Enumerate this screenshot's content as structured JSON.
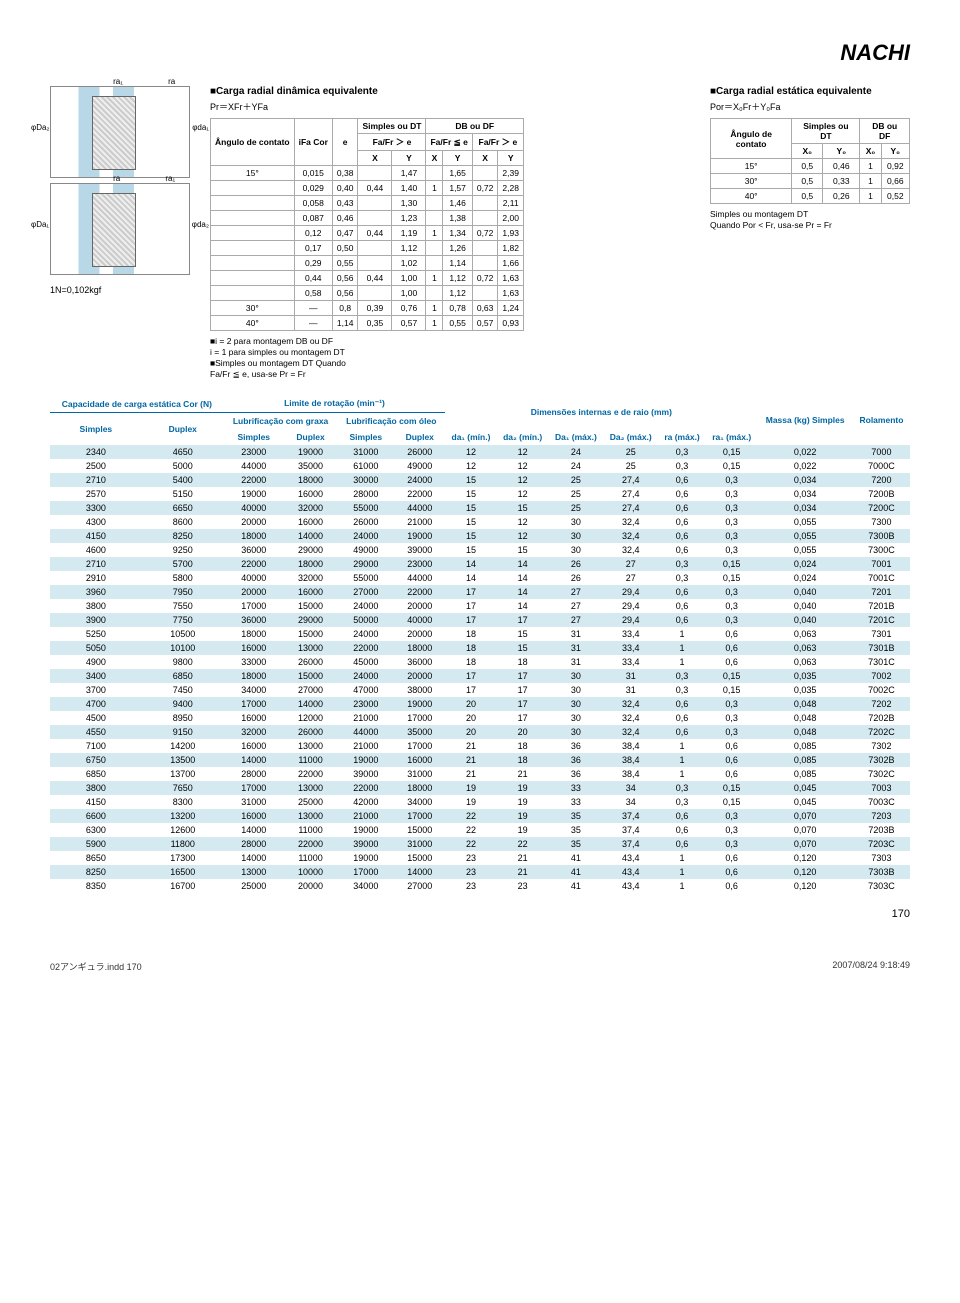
{
  "logo": "NACHI",
  "diagram": {
    "labels": [
      "φDa₂",
      "φda₁",
      "ra₁",
      "ra",
      "φDa₁",
      "φda₂"
    ],
    "note": "1N=0,102kgf"
  },
  "dynamic": {
    "title": "■Carga radial dinâmica equivalente",
    "formula": "Pr＝XFr＋YFa",
    "headers": {
      "c1": "Ângulo de contato",
      "c2": "iFa Cor",
      "c3": "e",
      "g1": "Simples ou DT",
      "g2": "DB ou DF",
      "s1": "Fa/Fr ＞ e",
      "s2": "Fa/Fr ≦ e",
      "s3": "Fa/Fr ＞ e",
      "X": "X",
      "Y": "Y"
    },
    "rows": [
      [
        "15°",
        "0,015",
        "0,38",
        "",
        "1,47",
        "",
        "1,65",
        "",
        "2,39"
      ],
      [
        "",
        "0,029",
        "0,40",
        "0,44",
        "1,40",
        "1",
        "1,57",
        "0,72",
        "2,28"
      ],
      [
        "",
        "0,058",
        "0,43",
        "",
        "1,30",
        "",
        "1,46",
        "",
        "2,11"
      ],
      [
        "",
        "0,087",
        "0,46",
        "",
        "1,23",
        "",
        "1,38",
        "",
        "2,00"
      ],
      [
        "",
        "0,12",
        "0,47",
        "0,44",
        "1,19",
        "1",
        "1,34",
        "0,72",
        "1,93"
      ],
      [
        "",
        "0,17",
        "0,50",
        "",
        "1,12",
        "",
        "1,26",
        "",
        "1,82"
      ],
      [
        "",
        "0,29",
        "0,55",
        "",
        "1,02",
        "",
        "1,14",
        "",
        "1,66"
      ],
      [
        "",
        "0,44",
        "0,56",
        "0,44",
        "1,00",
        "1",
        "1,12",
        "0,72",
        "1,63"
      ],
      [
        "",
        "0,58",
        "0,56",
        "",
        "1,00",
        "",
        "1,12",
        "",
        "1,63"
      ],
      [
        "30°",
        "—",
        "0,8",
        "0,39",
        "0,76",
        "1",
        "0,78",
        "0,63",
        "1,24"
      ],
      [
        "40°",
        "—",
        "1,14",
        "0,35",
        "0,57",
        "1",
        "0,55",
        "0,57",
        "0,93"
      ]
    ],
    "notes": "■i = 2 para montagem DB ou DF\n i = 1 para simples ou montagem DT\n■Simples ou montagem DT Quando\n Fa/Fr ≦ e, usa-se Pr = Fr"
  },
  "static": {
    "title": "■Carga radial estática equivalente",
    "formula": "Por＝X₀Fr＋Y₀Fa",
    "headers": {
      "c1": "Ângulo de contato",
      "g1": "Simples ou DT",
      "g2": "DB ou DF",
      "X0": "X₀",
      "Y0": "Y₀"
    },
    "rows": [
      [
        "15°",
        "0,5",
        "0,46",
        "1",
        "0,92"
      ],
      [
        "30°",
        "0,5",
        "0,33",
        "1",
        "0,66"
      ],
      [
        "40°",
        "0,5",
        "0,26",
        "1",
        "0,52"
      ]
    ],
    "notes": "Simples ou montagem DT\nQuando Por < Fr, usa-se Pr = Fr"
  },
  "main": {
    "headers": {
      "cap": "Capacidade de carga estática Cor (N)",
      "lim": "Limite de rotação (min⁻¹)",
      "lub1": "Lubrificação com graxa",
      "lub2": "Lubrificação com óleo",
      "dim": "Dimensões internas e de raio (mm)",
      "mass": "Massa (kg) Simples",
      "rol": "Rolamento",
      "simples": "Simples",
      "duplex": "Duplex",
      "da1": "da₁ (mín.)",
      "da2": "da₂ (mín.)",
      "Da1": "Da₁ (máx.)",
      "Da2": "Da₂ (máx.)",
      "ra": "ra (máx.)",
      "ra1": "ra₁ (máx.)"
    },
    "rows": [
      [
        "2340",
        "4650",
        "23000",
        "19000",
        "31000",
        "26000",
        "12",
        "12",
        "24",
        "25",
        "0,3",
        "0,15",
        "0,022",
        "7000"
      ],
      [
        "2500",
        "5000",
        "44000",
        "35000",
        "61000",
        "49000",
        "12",
        "12",
        "24",
        "25",
        "0,3",
        "0,15",
        "0,022",
        "7000C"
      ],
      [
        "2710",
        "5400",
        "22000",
        "18000",
        "30000",
        "24000",
        "15",
        "12",
        "25",
        "27,4",
        "0,6",
        "0,3",
        "0,034",
        "7200"
      ],
      [
        "2570",
        "5150",
        "19000",
        "16000",
        "28000",
        "22000",
        "15",
        "12",
        "25",
        "27,4",
        "0,6",
        "0,3",
        "0,034",
        "7200B"
      ],
      [
        "3300",
        "6650",
        "40000",
        "32000",
        "55000",
        "44000",
        "15",
        "15",
        "25",
        "27,4",
        "0,6",
        "0,3",
        "0,034",
        "7200C"
      ],
      [
        "4300",
        "8600",
        "20000",
        "16000",
        "26000",
        "21000",
        "15",
        "12",
        "30",
        "32,4",
        "0,6",
        "0,3",
        "0,055",
        "7300"
      ],
      [
        "4150",
        "8250",
        "18000",
        "14000",
        "24000",
        "19000",
        "15",
        "12",
        "30",
        "32,4",
        "0,6",
        "0,3",
        "0,055",
        "7300B"
      ],
      [
        "4600",
        "9250",
        "36000",
        "29000",
        "49000",
        "39000",
        "15",
        "15",
        "30",
        "32,4",
        "0,6",
        "0,3",
        "0,055",
        "7300C"
      ],
      [
        "2710",
        "5700",
        "22000",
        "18000",
        "29000",
        "23000",
        "14",
        "14",
        "26",
        "27",
        "0,3",
        "0,15",
        "0,024",
        "7001"
      ],
      [
        "2910",
        "5800",
        "40000",
        "32000",
        "55000",
        "44000",
        "14",
        "14",
        "26",
        "27",
        "0,3",
        "0,15",
        "0,024",
        "7001C"
      ],
      [
        "3960",
        "7950",
        "20000",
        "16000",
        "27000",
        "22000",
        "17",
        "14",
        "27",
        "29,4",
        "0,6",
        "0,3",
        "0,040",
        "7201"
      ],
      [
        "3800",
        "7550",
        "17000",
        "15000",
        "24000",
        "20000",
        "17",
        "14",
        "27",
        "29,4",
        "0,6",
        "0,3",
        "0,040",
        "7201B"
      ],
      [
        "3900",
        "7750",
        "36000",
        "29000",
        "50000",
        "40000",
        "17",
        "17",
        "27",
        "29,4",
        "0,6",
        "0,3",
        "0,040",
        "7201C"
      ],
      [
        "5250",
        "10500",
        "18000",
        "15000",
        "24000",
        "20000",
        "18",
        "15",
        "31",
        "33,4",
        "1",
        "0,6",
        "0,063",
        "7301"
      ],
      [
        "5050",
        "10100",
        "16000",
        "13000",
        "22000",
        "18000",
        "18",
        "15",
        "31",
        "33,4",
        "1",
        "0,6",
        "0,063",
        "7301B"
      ],
      [
        "4900",
        "9800",
        "33000",
        "26000",
        "45000",
        "36000",
        "18",
        "18",
        "31",
        "33,4",
        "1",
        "0,6",
        "0,063",
        "7301C"
      ],
      [
        "3400",
        "6850",
        "18000",
        "15000",
        "24000",
        "20000",
        "17",
        "17",
        "30",
        "31",
        "0,3",
        "0,15",
        "0,035",
        "7002"
      ],
      [
        "3700",
        "7450",
        "34000",
        "27000",
        "47000",
        "38000",
        "17",
        "17",
        "30",
        "31",
        "0,3",
        "0,15",
        "0,035",
        "7002C"
      ],
      [
        "4700",
        "9400",
        "17000",
        "14000",
        "23000",
        "19000",
        "20",
        "17",
        "30",
        "32,4",
        "0,6",
        "0,3",
        "0,048",
        "7202"
      ],
      [
        "4500",
        "8950",
        "16000",
        "12000",
        "21000",
        "17000",
        "20",
        "17",
        "30",
        "32,4",
        "0,6",
        "0,3",
        "0,048",
        "7202B"
      ],
      [
        "4550",
        "9150",
        "32000",
        "26000",
        "44000",
        "35000",
        "20",
        "20",
        "30",
        "32,4",
        "0,6",
        "0,3",
        "0,048",
        "7202C"
      ],
      [
        "7100",
        "14200",
        "16000",
        "13000",
        "21000",
        "17000",
        "21",
        "18",
        "36",
        "38,4",
        "1",
        "0,6",
        "0,085",
        "7302"
      ],
      [
        "6750",
        "13500",
        "14000",
        "11000",
        "19000",
        "16000",
        "21",
        "18",
        "36",
        "38,4",
        "1",
        "0,6",
        "0,085",
        "7302B"
      ],
      [
        "6850",
        "13700",
        "28000",
        "22000",
        "39000",
        "31000",
        "21",
        "21",
        "36",
        "38,4",
        "1",
        "0,6",
        "0,085",
        "7302C"
      ],
      [
        "3800",
        "7650",
        "17000",
        "13000",
        "22000",
        "18000",
        "19",
        "19",
        "33",
        "34",
        "0,3",
        "0,15",
        "0,045",
        "7003"
      ],
      [
        "4150",
        "8300",
        "31000",
        "25000",
        "42000",
        "34000",
        "19",
        "19",
        "33",
        "34",
        "0,3",
        "0,15",
        "0,045",
        "7003C"
      ],
      [
        "6600",
        "13200",
        "16000",
        "13000",
        "21000",
        "17000",
        "22",
        "19",
        "35",
        "37,4",
        "0,6",
        "0,3",
        "0,070",
        "7203"
      ],
      [
        "6300",
        "12600",
        "14000",
        "11000",
        "19000",
        "15000",
        "22",
        "19",
        "35",
        "37,4",
        "0,6",
        "0,3",
        "0,070",
        "7203B"
      ],
      [
        "5900",
        "11800",
        "28000",
        "22000",
        "39000",
        "31000",
        "22",
        "22",
        "35",
        "37,4",
        "0,6",
        "0,3",
        "0,070",
        "7203C"
      ],
      [
        "8650",
        "17300",
        "14000",
        "11000",
        "19000",
        "15000",
        "23",
        "21",
        "41",
        "43,4",
        "1",
        "0,6",
        "0,120",
        "7303"
      ],
      [
        "8250",
        "16500",
        "13000",
        "10000",
        "17000",
        "14000",
        "23",
        "21",
        "41",
        "43,4",
        "1",
        "0,6",
        "0,120",
        "7303B"
      ],
      [
        "8350",
        "16700",
        "25000",
        "20000",
        "34000",
        "27000",
        "23",
        "23",
        "41",
        "43,4",
        "1",
        "0,6",
        "0,120",
        "7303C"
      ]
    ]
  },
  "footer": {
    "file": "02アンギュラ.indd   170",
    "date": "2007/08/24   9:18:49",
    "page": "170"
  }
}
